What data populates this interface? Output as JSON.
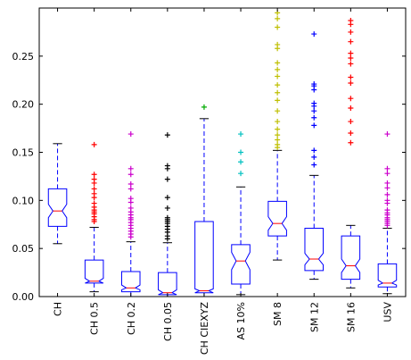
{
  "chart_data": {
    "type": "boxplot",
    "notched": true,
    "ylim": [
      0,
      0.3
    ],
    "yticks": [
      0.0,
      0.05,
      0.1,
      0.15,
      0.2,
      0.25
    ],
    "ytick_labels": [
      "0.00",
      "0.05",
      "0.10",
      "0.15",
      "0.20",
      "0.25"
    ],
    "title": "",
    "xlabel": "",
    "ylabel": "",
    "box_color": "#0000ff",
    "median_color": "#ff0000",
    "whisker_color": "#0000ff",
    "cap_color": "#000000",
    "categories": [
      "CH",
      "CH 0.5",
      "CH 0.2",
      "CH 0.05",
      "CH CIEXYZ",
      "AS 10%",
      "SM 8",
      "SM 12",
      "SM 16",
      "USV"
    ],
    "boxes": [
      {
        "label": "CH",
        "whislo": 0.055,
        "q1": 0.073,
        "med": 0.089,
        "q3": 0.112,
        "whishi": 0.159,
        "notch_lo": 0.082,
        "notch_hi": 0.096,
        "flier_color": "#ff0000",
        "fliers": []
      },
      {
        "label": "CH 0.5",
        "whislo": 0.005,
        "q1": 0.014,
        "med": 0.016,
        "q3": 0.038,
        "whishi": 0.072,
        "notch_lo": 0.013,
        "notch_hi": 0.019,
        "flier_color": "#ff0000",
        "fliers": [
          0.158,
          0.127,
          0.122,
          0.118,
          0.112,
          0.107,
          0.103,
          0.097,
          0.093,
          0.09,
          0.088,
          0.086,
          0.083,
          0.08,
          0.078
        ]
      },
      {
        "label": "CH 0.2",
        "whislo": 0.0,
        "q1": 0.005,
        "med": 0.009,
        "q3": 0.026,
        "whishi": 0.057,
        "notch_lo": 0.007,
        "notch_hi": 0.012,
        "flier_color": "#cc00cc",
        "fliers": [
          0.169,
          0.133,
          0.127,
          0.117,
          0.112,
          0.102,
          0.098,
          0.092,
          0.088,
          0.085,
          0.082,
          0.08,
          0.077,
          0.074,
          0.071,
          0.068,
          0.065,
          0.062
        ]
      },
      {
        "label": "CH 0.05",
        "whislo": 0.0,
        "q1": 0.002,
        "med": 0.004,
        "q3": 0.025,
        "whishi": 0.056,
        "notch_lo": 0.002,
        "notch_hi": 0.007,
        "flier_color": "#000000",
        "fliers": [
          0.168,
          0.136,
          0.133,
          0.122,
          0.103,
          0.092,
          0.082,
          0.08,
          0.078,
          0.076,
          0.073,
          0.07,
          0.067,
          0.063,
          0.06
        ]
      },
      {
        "label": "CH CIEXYZ",
        "whislo": 0.0,
        "q1": 0.004,
        "med": 0.006,
        "q3": 0.078,
        "whishi": 0.185,
        "notch_lo": 0.004,
        "notch_hi": 0.008,
        "flier_color": "#00aa00",
        "fliers": [
          0.197
        ]
      },
      {
        "label": "AS 10%",
        "whislo": 0.002,
        "q1": 0.013,
        "med": 0.037,
        "q3": 0.054,
        "whishi": 0.114,
        "notch_lo": 0.028,
        "notch_hi": 0.046,
        "flier_color": "#00c0c0",
        "fliers": [
          0.169,
          0.15,
          0.14,
          0.128
        ]
      },
      {
        "label": "SM 8",
        "whislo": 0.038,
        "q1": 0.063,
        "med": 0.076,
        "q3": 0.099,
        "whishi": 0.152,
        "notch_lo": 0.069,
        "notch_hi": 0.083,
        "flier_color": "#bfbf00",
        "fliers": [
          0.295,
          0.289,
          0.28,
          0.262,
          0.258,
          0.243,
          0.236,
          0.229,
          0.22,
          0.212,
          0.204,
          0.193,
          0.182,
          0.174,
          0.168,
          0.163,
          0.158,
          0.155
        ]
      },
      {
        "label": "SM 12",
        "whislo": 0.018,
        "q1": 0.027,
        "med": 0.039,
        "q3": 0.071,
        "whishi": 0.126,
        "notch_lo": 0.033,
        "notch_hi": 0.045,
        "flier_color": "#0000ff",
        "fliers": [
          0.273,
          0.221,
          0.219,
          0.215,
          0.201,
          0.198,
          0.193,
          0.186,
          0.178,
          0.152,
          0.145,
          0.137
        ]
      },
      {
        "label": "SM 16",
        "whislo": 0.009,
        "q1": 0.018,
        "med": 0.032,
        "q3": 0.063,
        "whishi": 0.074,
        "notch_lo": 0.025,
        "notch_hi": 0.039,
        "flier_color": "#ff0000",
        "fliers": [
          0.287,
          0.283,
          0.275,
          0.265,
          0.253,
          0.248,
          0.242,
          0.228,
          0.222,
          0.206,
          0.196,
          0.182,
          0.17,
          0.16
        ]
      },
      {
        "label": "USV",
        "whislo": 0.003,
        "q1": 0.01,
        "med": 0.014,
        "q3": 0.034,
        "whishi": 0.071,
        "notch_lo": 0.012,
        "notch_hi": 0.017,
        "flier_color": "#cc00cc",
        "fliers": [
          0.169,
          0.133,
          0.128,
          0.118,
          0.113,
          0.106,
          0.1,
          0.097,
          0.09,
          0.087,
          0.085,
          0.082,
          0.08,
          0.078,
          0.076,
          0.074
        ]
      }
    ]
  }
}
